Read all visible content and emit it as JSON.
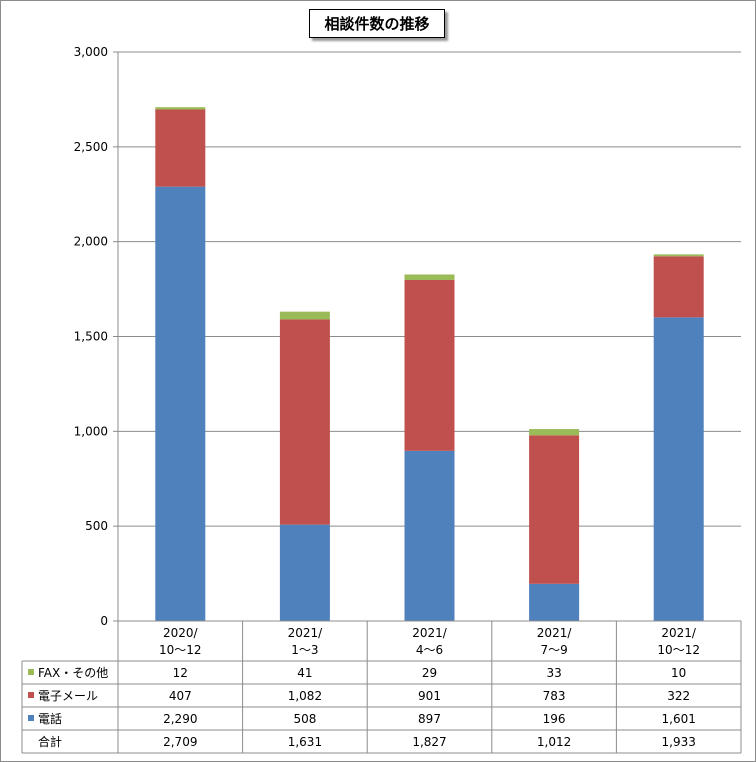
{
  "chart_data": {
    "type": "bar",
    "stacked": true,
    "title": "相談件数の推移",
    "categories": [
      [
        "2020/",
        "10～12"
      ],
      [
        "2021/",
        "1～3"
      ],
      [
        "2021/",
        "4～6"
      ],
      [
        "2021/",
        "7～9"
      ],
      [
        "2021/",
        "10～12"
      ]
    ],
    "series": [
      {
        "name": "電話",
        "color": "#4f81bd",
        "values": [
          2290,
          508,
          897,
          196,
          1601
        ],
        "labels": [
          "2,290",
          "508",
          "897",
          "196",
          "1,601"
        ]
      },
      {
        "name": "電子メール",
        "color": "#c0504d",
        "values": [
          407,
          1082,
          901,
          783,
          322
        ],
        "labels": [
          "407",
          "1,082",
          "901",
          "783",
          "322"
        ]
      },
      {
        "name": "FAX・その他",
        "color": "#9bbb59",
        "values": [
          12,
          41,
          29,
          33,
          10
        ],
        "labels": [
          "12",
          "41",
          "29",
          "33",
          "10"
        ]
      }
    ],
    "totals": {
      "name": "合計",
      "values": [
        2709,
        1631,
        1827,
        1012,
        1933
      ],
      "labels": [
        "2,709",
        "1,631",
        "1,827",
        "1,012",
        "1,933"
      ]
    },
    "table_row_order": [
      "FAX・その他",
      "電子メール",
      "電話",
      "合計"
    ],
    "ylim": [
      0,
      3000
    ],
    "yticks": [
      0,
      500,
      1000,
      1500,
      2000,
      2500,
      3000
    ],
    "ytick_labels": [
      "0",
      "500",
      "1,000",
      "1,500",
      "2,000",
      "2,500",
      "3,000"
    ],
    "grid": true,
    "legend": "data-table"
  }
}
